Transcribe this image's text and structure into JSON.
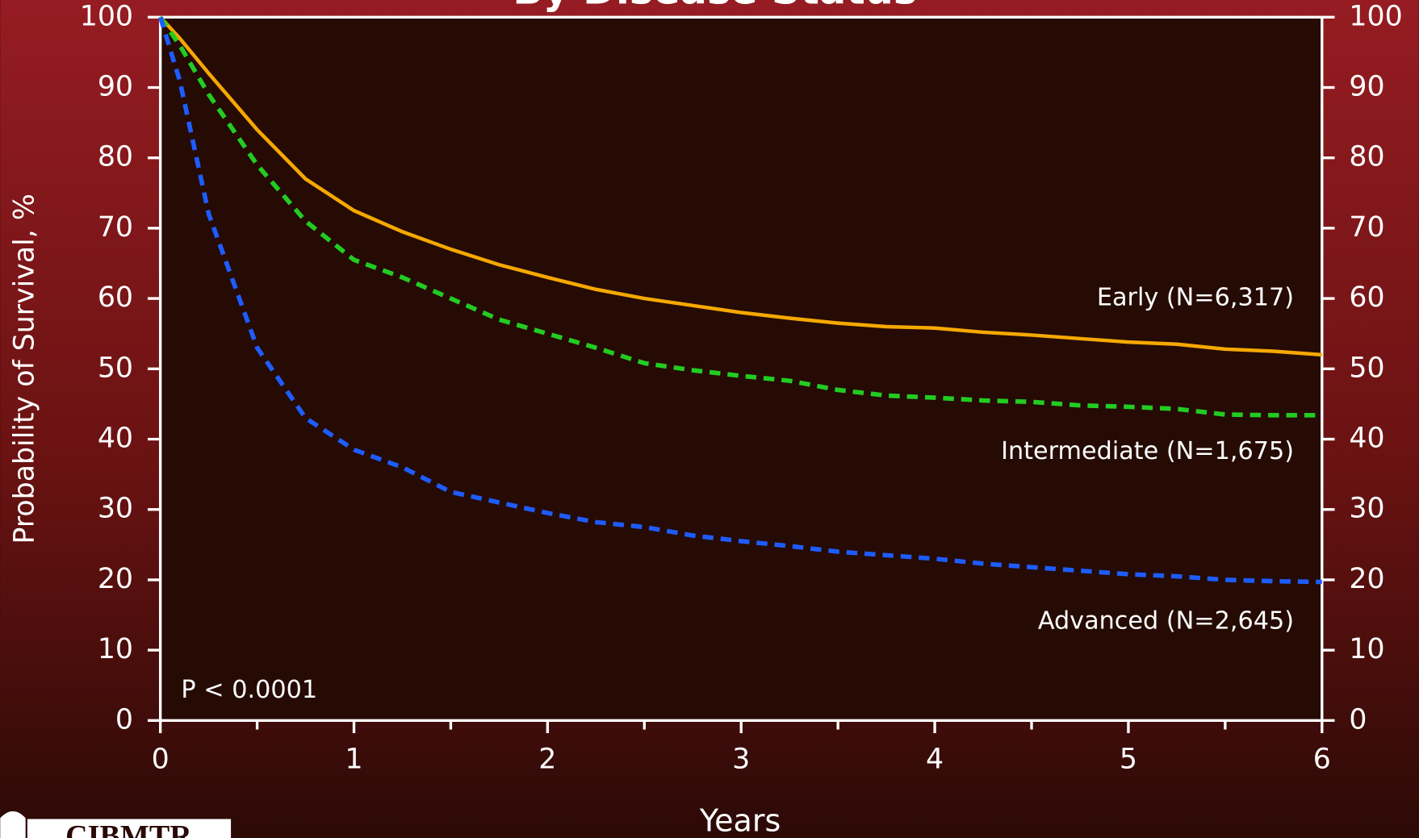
{
  "chart_data": {
    "type": "line",
    "title": "By Disease Status",
    "x_label": "Years",
    "y_label": "Probability of Survival, %",
    "annotation": "P < 0.0001",
    "logo": "CIBMTR",
    "x": [
      0,
      0.1,
      0.25,
      0.5,
      0.75,
      1,
      1.25,
      1.5,
      1.75,
      2,
      2.25,
      2.5,
      2.75,
      3,
      3.25,
      3.5,
      3.75,
      4,
      4.25,
      4.5,
      4.75,
      5,
      5.25,
      5.5,
      5.75,
      6
    ],
    "series": [
      {
        "name": "Early (N=6,317)",
        "color": "#f5a800",
        "line_style": "solid",
        "values": [
          100,
          97,
          92,
          84,
          77,
          72.5,
          69.5,
          67,
          64.8,
          63,
          61.3,
          60,
          59,
          58,
          57.2,
          56.5,
          56,
          55.8,
          55.2,
          54.8,
          54.3,
          53.8,
          53.5,
          52.8,
          52.5,
          52
        ]
      },
      {
        "name": "Intermediate (N=1,675)",
        "color": "#22cc22",
        "line_style": "dashed",
        "values": [
          100,
          96,
          89,
          79,
          71,
          65.5,
          63,
          60,
          57,
          55,
          53,
          50.8,
          49.8,
          49,
          48.3,
          47,
          46.2,
          45.9,
          45.5,
          45.3,
          44.8,
          44.6,
          44.3,
          43.5,
          43.4,
          43.4
        ]
      },
      {
        "name": "Advanced (N=2,645)",
        "color": "#1e5cff",
        "line_style": "dashed",
        "values": [
          100,
          91,
          72,
          53,
          43,
          38.5,
          36,
          32.5,
          31,
          29.5,
          28.2,
          27.5,
          26.3,
          25.5,
          24.8,
          24,
          23.5,
          23,
          22.3,
          21.8,
          21.3,
          20.8,
          20.5,
          20,
          19.8,
          19.7
        ]
      }
    ],
    "xlim": [
      0,
      6
    ],
    "xticks": [
      0,
      1,
      2,
      3,
      4,
      5,
      6
    ],
    "xminor_ticks": [
      0.5,
      1.5,
      2.5,
      3.5,
      4.5,
      5.5
    ],
    "ylim": [
      0,
      100
    ],
    "yticks": [
      0,
      10,
      20,
      30,
      40,
      50,
      60,
      70,
      80,
      90,
      100
    ],
    "y2lim": [
      0,
      100
    ],
    "y2ticks": [
      0,
      10,
      20,
      30,
      40,
      50,
      60,
      70,
      80,
      90,
      100
    ]
  }
}
